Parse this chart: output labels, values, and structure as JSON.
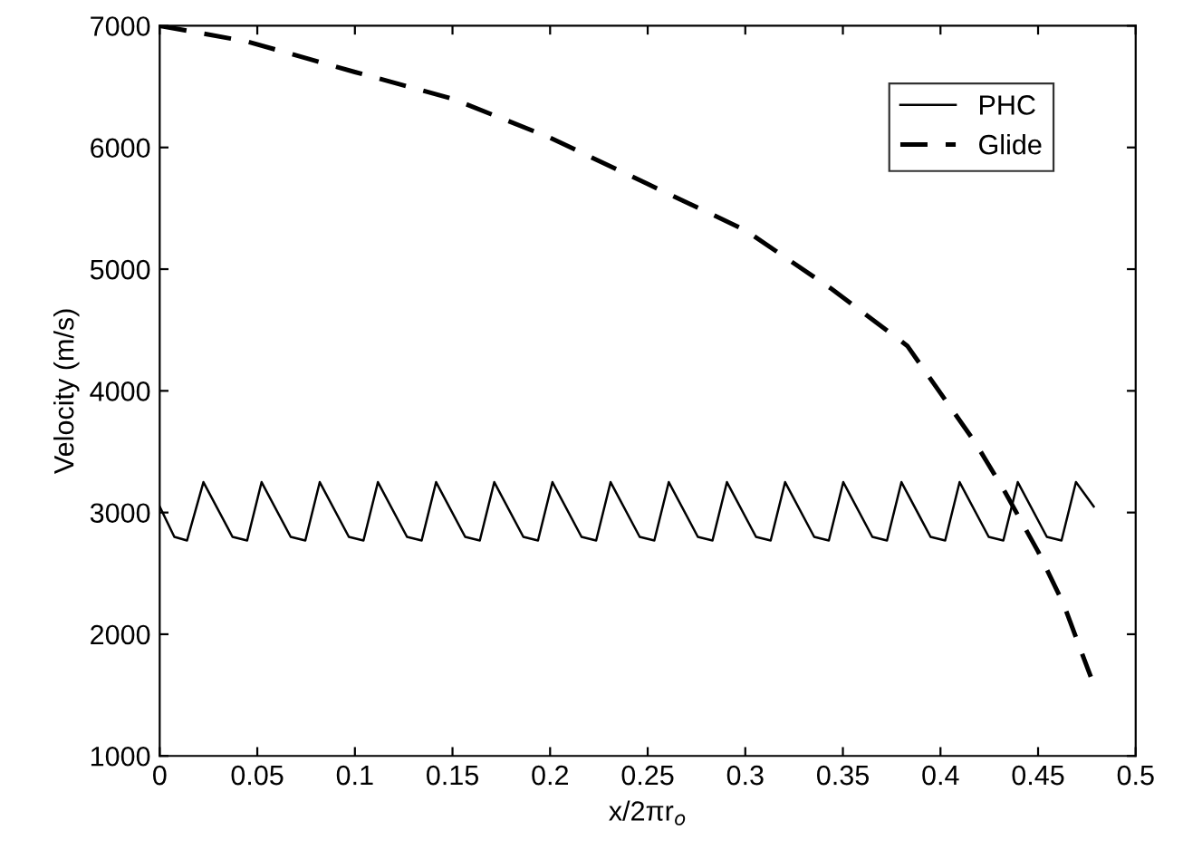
{
  "chart_data": {
    "type": "line",
    "xlabel": "x/2πr$_{o}$",
    "ylabel": "Velocity (m/s)",
    "xlim": [
      0,
      0.5
    ],
    "ylim": [
      1000,
      7000
    ],
    "xticks": [
      0,
      0.05,
      0.1,
      0.15,
      0.2,
      0.25,
      0.3,
      0.35,
      0.4,
      0.45,
      0.5
    ],
    "yticks": [
      1000,
      2000,
      3000,
      4000,
      5000,
      6000,
      7000
    ],
    "grid": false,
    "legend": "top right",
    "series": [
      {
        "name": "PHC",
        "color": "#000000",
        "line_style": "solid",
        "x": [
          0,
          0.0075,
          0.014,
          0.0224,
          0.0373,
          0.0448,
          0.0522,
          0.0671,
          0.0746,
          0.082,
          0.0969,
          0.1044,
          0.1118,
          0.1267,
          0.1342,
          0.1416,
          0.1565,
          0.164,
          0.1714,
          0.1863,
          0.1938,
          0.2012,
          0.2161,
          0.2236,
          0.231,
          0.2459,
          0.2534,
          0.2608,
          0.2757,
          0.2832,
          0.2906,
          0.3055,
          0.313,
          0.3204,
          0.3353,
          0.3428,
          0.3502,
          0.3651,
          0.3726,
          0.38,
          0.3949,
          0.4024,
          0.4098,
          0.4247,
          0.4322,
          0.4396,
          0.4545,
          0.462,
          0.4694,
          0.4785
        ],
        "values": [
          3050,
          2800,
          2770,
          3250,
          2800,
          2770,
          3250,
          2800,
          2770,
          3250,
          2800,
          2770,
          3250,
          2800,
          2770,
          3250,
          2800,
          2770,
          3250,
          2800,
          2770,
          3250,
          2800,
          2770,
          3250,
          2800,
          2770,
          3250,
          2800,
          2770,
          3250,
          2800,
          2770,
          3250,
          2800,
          2770,
          3250,
          2800,
          2770,
          3250,
          2800,
          2770,
          3250,
          2800,
          2770,
          3250,
          2800,
          2770,
          3250,
          3050
        ]
      },
      {
        "name": "Glide",
        "color": "#000000",
        "line_style": "dashed",
        "x": [
          0,
          0.045,
          0.1,
          0.15,
          0.2,
          0.25,
          0.3,
          0.344,
          0.383,
          0.418,
          0.433,
          0.45,
          0.463,
          0.47,
          0.477
        ],
        "values": [
          7000,
          6870,
          6620,
          6400,
          6080,
          5700,
          5320,
          4840,
          4370,
          3570,
          3170,
          2680,
          2250,
          1950,
          1650
        ]
      }
    ]
  }
}
